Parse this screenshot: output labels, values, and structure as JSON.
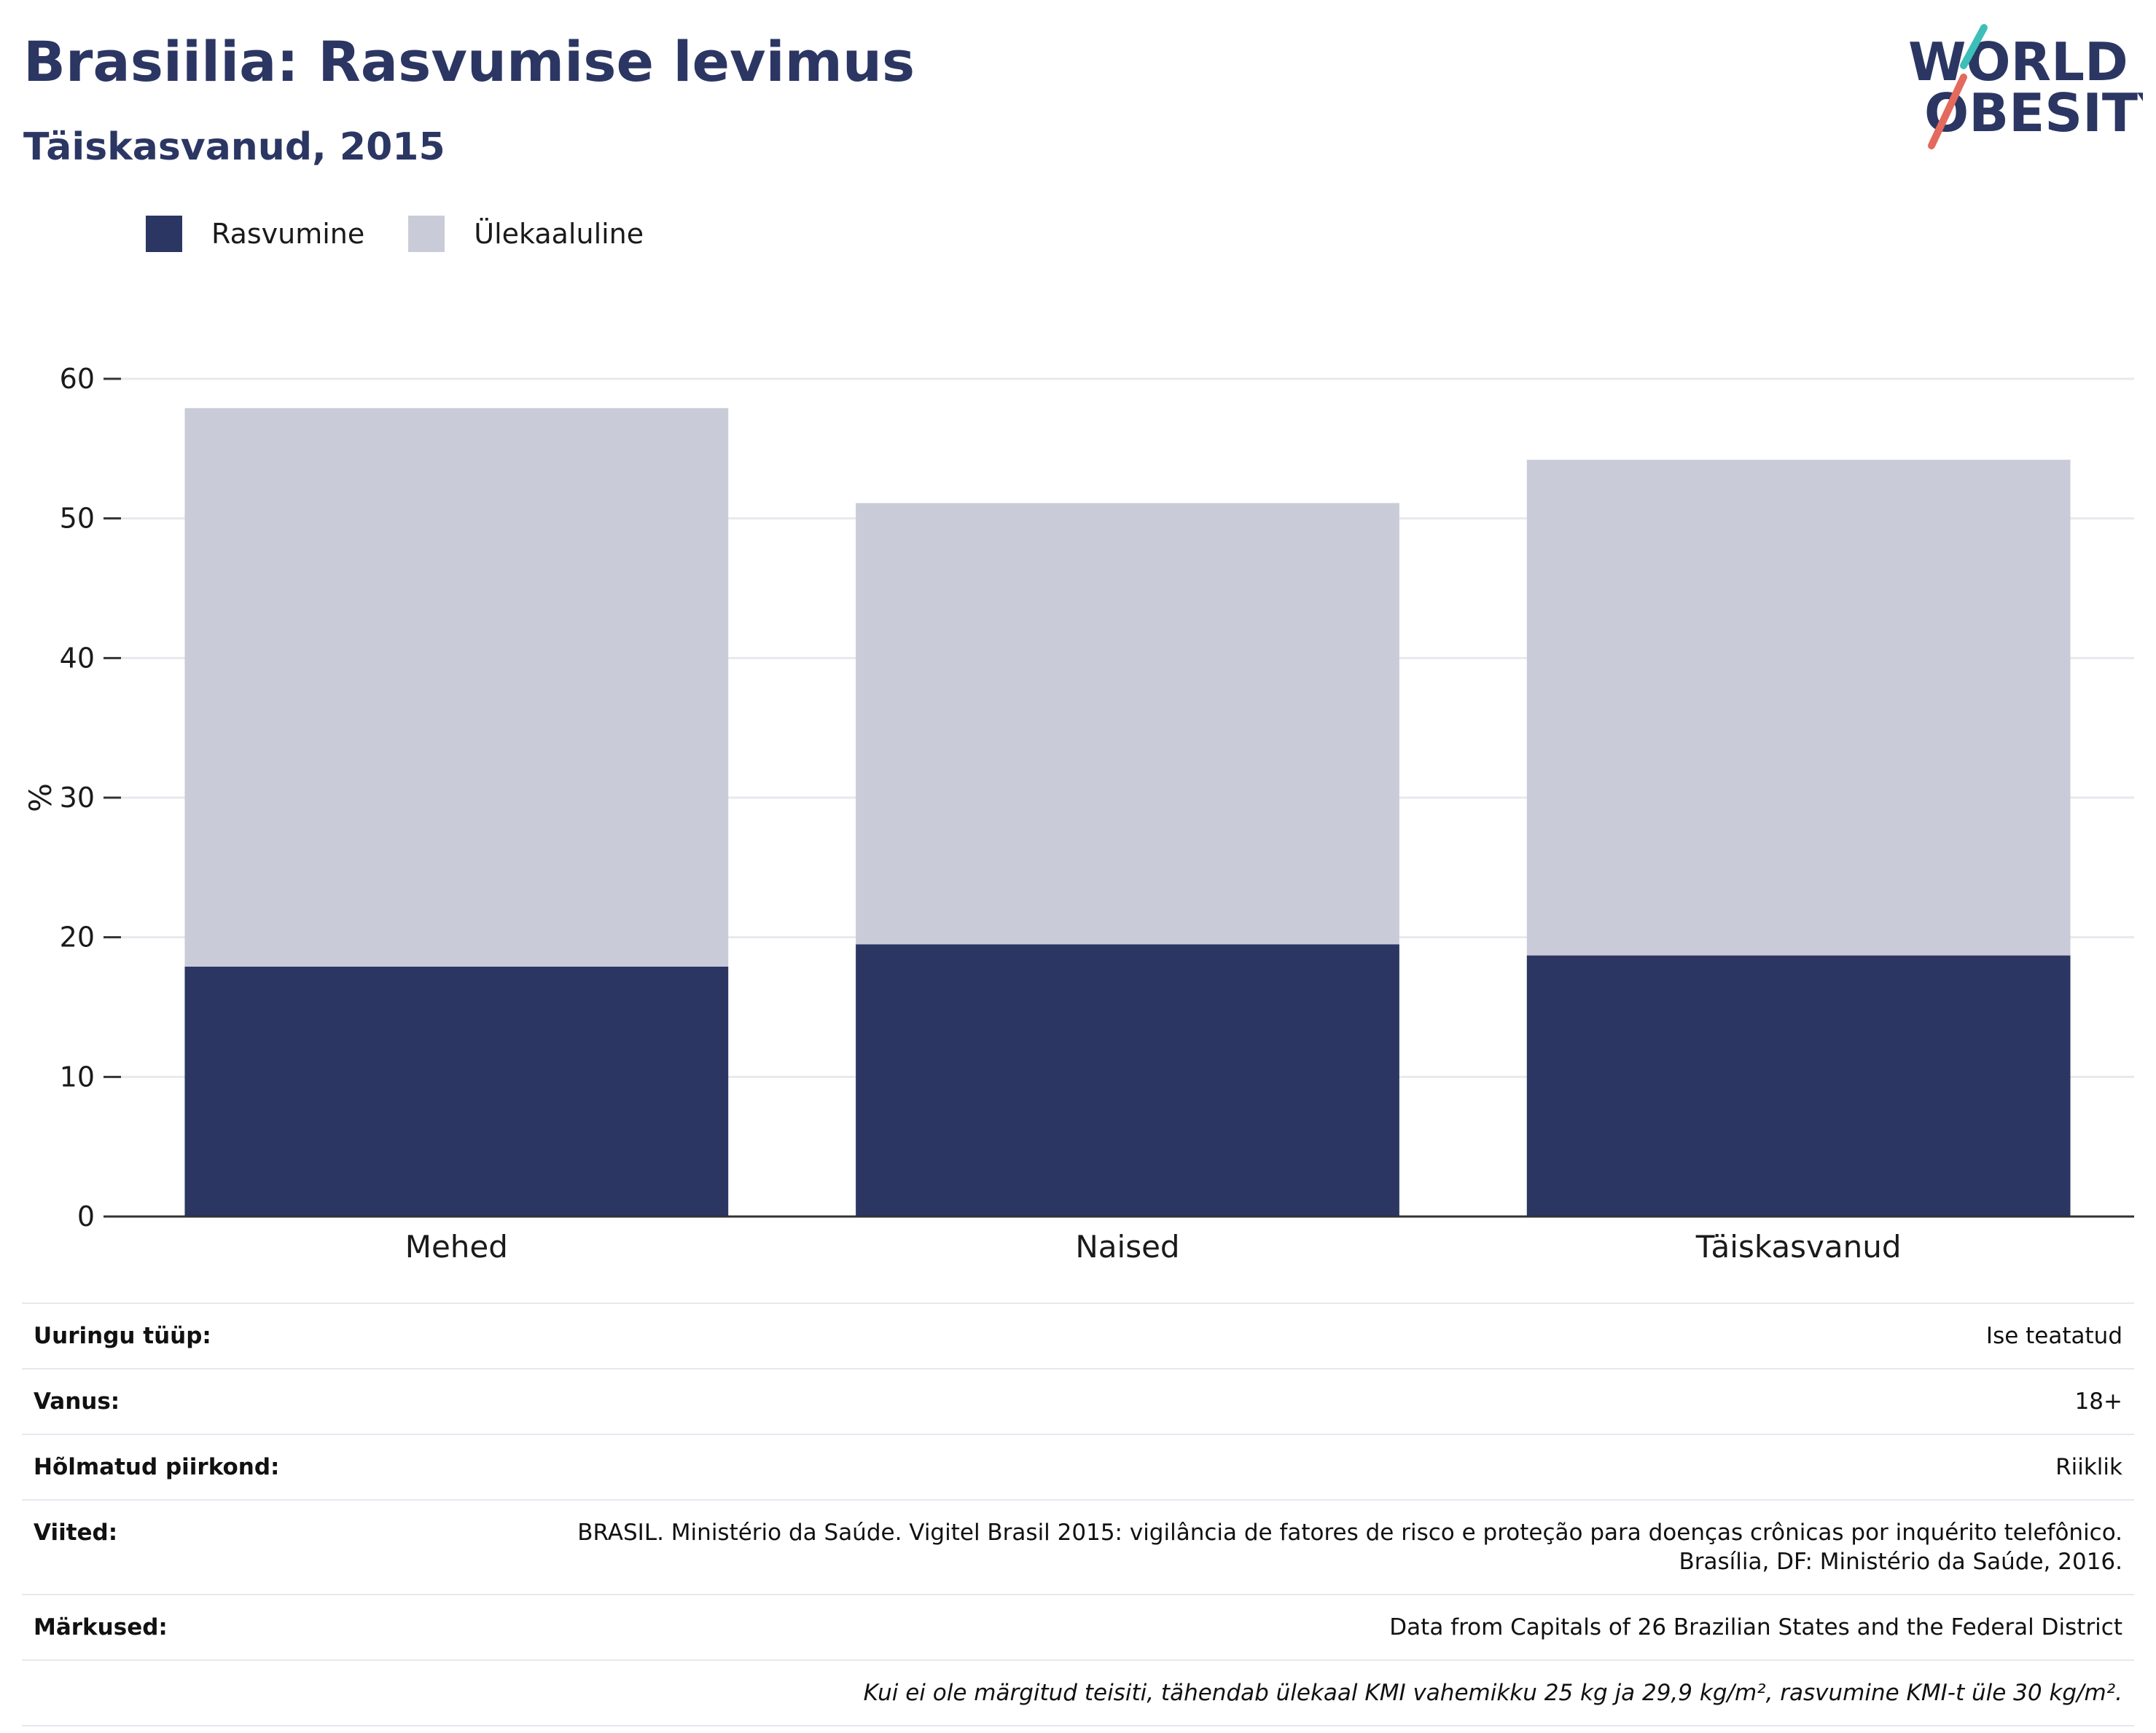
{
  "header": {
    "title": "Brasiilia: Rasvumise levimus",
    "subtitle": "Täiskasvanud, 2015"
  },
  "logo": {
    "line1": "WORLD",
    "line2": "OBESITY",
    "colors": {
      "text": "#2b3663",
      "accent_teal": "#3cbfb8",
      "accent_coral": "#e36a5d"
    }
  },
  "chart_data": {
    "type": "bar",
    "stacked": true,
    "title": "",
    "xlabel": "",
    "ylabel": "%",
    "ylim": [
      0,
      60
    ],
    "yticks": [
      0,
      10,
      20,
      30,
      40,
      50,
      60
    ],
    "grid": true,
    "legend_position": "top-left",
    "categories": [
      "Mehed",
      "Naised",
      "Täiskasvanud"
    ],
    "series": [
      {
        "name": "Rasvumine",
        "color": "#2b3663",
        "values": [
          17.9,
          19.5,
          18.7
        ]
      },
      {
        "name": "Ülekaaluline",
        "color": "#c9ccd8",
        "values": [
          40.0,
          31.6,
          35.5
        ]
      }
    ]
  },
  "info": {
    "rows": [
      {
        "key": "Uuringu tüüp:",
        "value": "Ise teatatud"
      },
      {
        "key": "Vanus:",
        "value": "18+"
      },
      {
        "key": "Hõlmatud piirkond:",
        "value": "Riiklik"
      },
      {
        "key": "Viited:",
        "value": "BRASIL. Ministério da Saúde. Vigitel Brasil 2015: vigilância de fatores de risco e proteção para doenças crônicas por inquérito telefônico.",
        "value2": "Brasília, DF: Ministério da Saúde, 2016."
      },
      {
        "key": "Märkused:",
        "value": "Data from Capitals of 26 Brazilian States and the Federal District"
      }
    ],
    "footnote": "Kui ei ole märgitud teisiti, tähendab ülekaal KMI vahemikku 25 kg ja 29,9 kg/m², rasvumine KMI-t üle 30 kg/m²."
  }
}
